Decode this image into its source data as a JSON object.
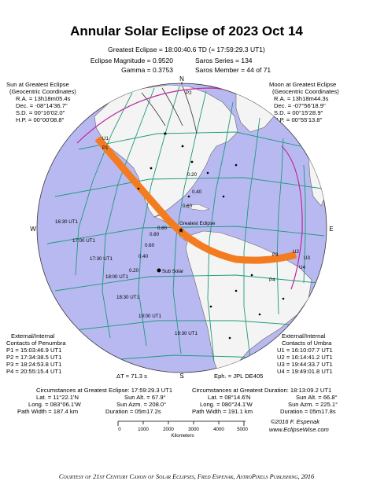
{
  "title": "Annular Solar Eclipse of  2023 Oct 14",
  "greatest_eclipse": "Greatest Eclipse =  18:00:40.6 TD   (= 17:59:29.3 UT1)",
  "eclipse_magnitude": "Eclipse Magnitude = 0.9520",
  "gamma": "Gamma = 0.3753",
  "saros_series": "Saros Series =  134",
  "saros_member": "Saros Member =   44 of 71",
  "sun_box": {
    "title": "Sun at Greatest Eclipse",
    "subtitle": "(Geocentric Coordinates)",
    "lines": [
      "R.A. = 13h18m05.4s",
      "Dec. = -08°14'36.7\"",
      "S.D. = 00°16'02.0\"",
      "H.P. = 00°00'08.8\""
    ]
  },
  "moon_box": {
    "title": "Moon at Greatest Eclipse",
    "subtitle": "(Geocentric Coordinates)",
    "lines": [
      "R.A. = 13h18m44.3s",
      "Dec. = -07°56'18.9\"",
      "S.D. = 00°15'28.9\"",
      "H.P. = 00°55'13.8\""
    ]
  },
  "compass": {
    "n": "N",
    "s": "S",
    "e": "E",
    "w": "W"
  },
  "map_labels": {
    "greatest_eclipse": "Greatest Eclipse",
    "sub_solar": "Sub Solar",
    "p1": "P1",
    "p2": "P2",
    "p3": "P3",
    "p4": "P4",
    "u1": "U1",
    "u2": "U2",
    "u3": "U3",
    "u4": "U4",
    "mag_labels": [
      "0.20",
      "0.40",
      "0.60",
      "0.80",
      "0.80",
      "0.60",
      "0.40",
      "0.20"
    ],
    "ut_labels": [
      "16:30 UT1",
      "17:00 UT1",
      "17:30 UT1",
      "18:00 UT1",
      "18:30 UT1",
      "19:00 UT1",
      "19:30 UT1"
    ]
  },
  "penumbra": {
    "title": "External/Internal",
    "subtitle": "Contacts of Penumbra",
    "lines": [
      "P1 = 15:03:46.9 UT1",
      "P2 = 17:34:38.5 UT1",
      "P3 = 18:24:53.8 UT1",
      "P4 = 20:55:15.4 UT1"
    ]
  },
  "umbra": {
    "title": "External/Internal",
    "subtitle": "Contacts of Umbra",
    "lines": [
      "U1 = 16:10:07.7 UT1",
      "U2 = 16:14:41.2 UT1",
      "U3 = 19:44:33.7 UT1",
      "U4 = 19:49:01.8 UT1"
    ]
  },
  "delta_t": "ΔT =    71.3 s",
  "ephemeris": "Eph. = JPL DE405",
  "circ_greatest": {
    "title": "Circumstances at Greatest Eclipse:  17:59:29.3 UT1",
    "lat": "Lat. =   11°22.1'N",
    "sun_alt": "Sun Alt. =   67.9°",
    "long": "Long. = 083°06.1'W",
    "sun_azm": "Sun Azm. = 208.0°",
    "path_width": "Path Width = 187.4 km",
    "duration": "Duration = 05m17.2s"
  },
  "circ_duration": {
    "title": "Circumstances at Greatest Duration:  18:13:09.2 UT1",
    "lat": "Lat. =   08°14.6'N",
    "sun_alt": "Sun Alt. =   66.8°",
    "long": "Long. = 080°24.1'W",
    "sun_azm": "Sun Azm. = 225.1°",
    "path_width": "Path Width = 191.1 km",
    "duration": "Duration = 05m17.8s"
  },
  "scale": {
    "ticks": [
      "0",
      "1000",
      "2000",
      "3000",
      "4000",
      "5000"
    ],
    "unit": "Kilometers"
  },
  "credit": {
    "line1": "©2016  F. Espenak",
    "line2": "www.EclipseWise.com"
  },
  "footer": "Courtesy of 21st Century Canon of Solar Eclipses, Fred Espenak, AstroPixels Publishing, 2016",
  "colors": {
    "ocean": "#b9b9f2",
    "land": "#f4f4f4",
    "path": "#f47c20",
    "grid": "#1a9a7a",
    "penumbra": "#c0259a"
  }
}
